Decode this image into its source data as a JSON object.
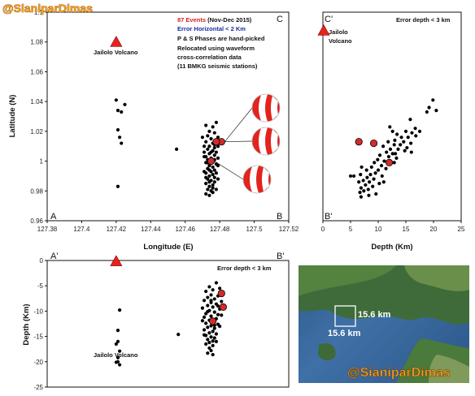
{
  "watermark": "@SianiparDimas",
  "charts": {
    "a": {
      "corner_left": "A",
      "corner_right": "B",
      "corner_top": "C",
      "xlabel": "Longitude (E)",
      "ylabel": "Latitude (N)",
      "xticks": [
        "127.38",
        "127.4",
        "127.42",
        "127.44",
        "127.46",
        "127.48",
        "127.5",
        "127.52"
      ],
      "yticks": [
        "0.96",
        "0.98",
        "1",
        "1.02",
        "1.04",
        "1.06",
        "1.08",
        "1.1"
      ],
      "volcano_label": "Jailolo Volcano",
      "notes": {
        "events": "87 Events",
        "period": " (Nov-Dec 2015)",
        "error": "Error Horizontal <  2 Km",
        "l1": "P & S Phases are hand-picked",
        "l2": "Relocated using waveform",
        "l3": "cross-correlation data",
        "l4": "(11 BMKG seismic stations)"
      }
    },
    "c": {
      "corner_top": "C'",
      "corner_bottom": "B'",
      "xlabel": "Depth (Km)",
      "xticks": [
        "0",
        "5",
        "10",
        "15",
        "20",
        "25"
      ],
      "note": "Error depth < 3 km",
      "volcano_label_1": "Jailolo",
      "volcano_label_2": "Volcano"
    },
    "b": {
      "corner_left": "A'",
      "corner_right": "B'",
      "ylabel": "Depth (Km)",
      "yticks": [
        "0",
        "-5",
        "-10",
        "-15",
        "-20",
        "-25"
      ],
      "note": "Error depth < 3 km",
      "volcano_label": "Jailolo Volcano"
    }
  },
  "map": {
    "label_horizontal": "15.6 km",
    "label_vertical": "15.6 km"
  },
  "chart_data": [
    {
      "type": "scatter",
      "xlabel": "Longitude (E)",
      "ylabel": "Latitude (N)",
      "xlim": [
        127.38,
        127.52
      ],
      "ylim": [
        0.96,
        1.1
      ],
      "volcano": {
        "x": 127.42,
        "y": 1.08,
        "color": "#e8221b"
      },
      "highlight_color": "#d32b2b",
      "highlighted_events": [
        {
          "x": 127.481,
          "y": 1.013
        },
        {
          "x": 127.478,
          "y": 1.013
        },
        {
          "x": 127.475,
          "y": 1.0
        }
      ],
      "events": [
        [
          127.42,
          1.041
        ],
        [
          127.421,
          1.034
        ],
        [
          127.423,
          1.033
        ],
        [
          127.425,
          1.038
        ],
        [
          127.421,
          1.021
        ],
        [
          127.422,
          1.016
        ],
        [
          127.423,
          1.012
        ],
        [
          127.421,
          0.983
        ],
        [
          127.455,
          1.008
        ],
        [
          127.472,
          1.024
        ],
        [
          127.476,
          1.023
        ],
        [
          127.478,
          1.026
        ],
        [
          127.474,
          1.02
        ],
        [
          127.477,
          1.019
        ],
        [
          127.473,
          1.017
        ],
        [
          127.47,
          1.016
        ],
        [
          127.475,
          1.015
        ],
        [
          127.479,
          1.016
        ],
        [
          127.472,
          1.013
        ],
        [
          127.476,
          1.012
        ],
        [
          127.474,
          1.01
        ],
        [
          127.477,
          1.009
        ],
        [
          127.473,
          1.008
        ],
        [
          127.476,
          1.007
        ],
        [
          127.471,
          1.006
        ],
        [
          127.478,
          1.006
        ],
        [
          127.474,
          1.005
        ],
        [
          127.477,
          1.004
        ],
        [
          127.472,
          1.003
        ],
        [
          127.475,
          1.002
        ],
        [
          127.479,
          1.002
        ],
        [
          127.473,
          1.001
        ],
        [
          127.476,
          1.0
        ],
        [
          127.472,
          0.999
        ],
        [
          127.478,
          0.998
        ],
        [
          127.474,
          0.997
        ],
        [
          127.476,
          0.996
        ],
        [
          127.473,
          0.995
        ],
        [
          127.477,
          0.994
        ],
        [
          127.475,
          0.993
        ],
        [
          127.472,
          0.992
        ],
        [
          127.476,
          0.991
        ],
        [
          127.474,
          0.99
        ],
        [
          127.477,
          0.989
        ],
        [
          127.473,
          0.988
        ],
        [
          127.475,
          0.987
        ],
        [
          127.477,
          0.986
        ],
        [
          127.472,
          0.985
        ],
        [
          127.476,
          0.984
        ],
        [
          127.474,
          0.983
        ],
        [
          127.473,
          0.981
        ],
        [
          127.475,
          0.98
        ],
        [
          127.476,
          0.979
        ],
        [
          127.472,
          0.978
        ],
        [
          127.474,
          0.977
        ],
        [
          127.477,
          1.011
        ],
        [
          127.471,
          1.01
        ],
        [
          127.479,
          1.01
        ],
        [
          127.475,
          1.006
        ],
        [
          127.471,
          1.003
        ],
        [
          127.477,
          1.001
        ],
        [
          127.473,
          0.999
        ],
        [
          127.479,
          0.997
        ],
        [
          127.474,
          0.994
        ],
        [
          127.471,
          0.993
        ],
        [
          127.478,
          0.992
        ],
        [
          127.472,
          0.989
        ],
        [
          127.479,
          0.988
        ],
        [
          127.474,
          0.986
        ],
        [
          127.476,
          0.982
        ],
        [
          127.478,
          0.981
        ]
      ]
    },
    {
      "type": "scatter",
      "xlabel": "Depth (Km)",
      "xlim": [
        0,
        25
      ],
      "ylim": [
        0.96,
        1.1
      ],
      "volcano": {
        "x": 0,
        "y": 1.08,
        "color": "#e8221b"
      },
      "highlighted_events": [
        {
          "x": 6.5,
          "y": 1.013
        },
        {
          "x": 9.2,
          "y": 1.012
        },
        {
          "x": 12.0,
          "y": 0.999
        }
      ],
      "events": [
        [
          19.9,
          1.041
        ],
        [
          19.2,
          1.036
        ],
        [
          18.8,
          1.033
        ],
        [
          20.5,
          1.034
        ],
        [
          15.8,
          1.028
        ],
        [
          16.7,
          1.022
        ],
        [
          17.5,
          1.02
        ],
        [
          16.1,
          1.019
        ],
        [
          15.0,
          1.02
        ],
        [
          12.1,
          1.023
        ],
        [
          12.6,
          1.02
        ],
        [
          13.4,
          1.018
        ],
        [
          14.2,
          1.016
        ],
        [
          15.4,
          1.016
        ],
        [
          13.0,
          1.014
        ],
        [
          14.6,
          1.013
        ],
        [
          11.8,
          1.013
        ],
        [
          12.9,
          1.011
        ],
        [
          14.0,
          1.011
        ],
        [
          15.9,
          1.012
        ],
        [
          10.9,
          1.01
        ],
        [
          12.2,
          1.008
        ],
        [
          13.6,
          1.008
        ],
        [
          11.5,
          1.006
        ],
        [
          12.6,
          1.005
        ],
        [
          14.8,
          1.007
        ],
        [
          10.3,
          1.004
        ],
        [
          11.9,
          1.003
        ],
        [
          13.3,
          1.002
        ],
        [
          9.9,
          1.001
        ],
        [
          11.1,
          1.0
        ],
        [
          12.9,
          0.999
        ],
        [
          9.3,
          0.999
        ],
        [
          10.6,
          0.997
        ],
        [
          8.8,
          0.996
        ],
        [
          10.0,
          0.994
        ],
        [
          11.4,
          0.995
        ],
        [
          7.9,
          0.994
        ],
        [
          9.5,
          0.992
        ],
        [
          8.6,
          0.991
        ],
        [
          10.7,
          0.99
        ],
        [
          6.8,
          0.991
        ],
        [
          8.0,
          0.989
        ],
        [
          9.2,
          0.988
        ],
        [
          7.3,
          0.987
        ],
        [
          8.4,
          0.986
        ],
        [
          6.5,
          0.986
        ],
        [
          7.7,
          0.984
        ],
        [
          9.0,
          0.983
        ],
        [
          6.9,
          0.982
        ],
        [
          8.2,
          0.981
        ],
        [
          7.4,
          0.98
        ],
        [
          6.7,
          0.979
        ],
        [
          9.6,
          0.978
        ],
        [
          8.3,
          0.977
        ],
        [
          6.9,
          0.976
        ],
        [
          5.6,
          0.99
        ],
        [
          5.0,
          0.99
        ],
        [
          16.8,
          1.017
        ],
        [
          15.2,
          1.009
        ],
        [
          16.0,
          1.006
        ],
        [
          11.0,
          0.986
        ],
        [
          13.1,
          1.005
        ],
        [
          10.2,
          0.985
        ],
        [
          7.0,
          0.996
        ]
      ]
    },
    {
      "type": "scatter",
      "ylabel": "Depth (Km)",
      "xlim": [
        127.38,
        127.52
      ],
      "ylim": [
        -25,
        0
      ],
      "volcano": {
        "x": 127.42,
        "y": 0,
        "color": "#e8221b"
      },
      "highlighted_events": [
        {
          "x": 127.481,
          "y": -6.5
        },
        {
          "x": 127.482,
          "y": -9.2
        },
        {
          "x": 127.476,
          "y": -12.0
        }
      ],
      "events": [
        [
          127.422,
          -9.8
        ],
        [
          127.421,
          -13.8
        ],
        [
          127.421,
          -16.0
        ],
        [
          127.42,
          -16.5
        ],
        [
          127.422,
          -17.9
        ],
        [
          127.421,
          -19.2
        ],
        [
          127.42,
          -20.1
        ],
        [
          127.422,
          -20.6
        ],
        [
          127.421,
          -20.0
        ],
        [
          127.456,
          -14.6
        ],
        [
          127.478,
          -4.4
        ],
        [
          127.474,
          -5.2
        ],
        [
          127.48,
          -5.5
        ],
        [
          127.476,
          -5.8
        ],
        [
          127.472,
          -6.1
        ],
        [
          127.482,
          -6.3
        ],
        [
          127.475,
          -6.8
        ],
        [
          127.479,
          -7.0
        ],
        [
          127.473,
          -7.3
        ],
        [
          127.477,
          -7.6
        ],
        [
          127.471,
          -7.9
        ],
        [
          127.481,
          -8.1
        ],
        [
          127.475,
          -8.3
        ],
        [
          127.478,
          -8.6
        ],
        [
          127.473,
          -8.9
        ],
        [
          127.476,
          -9.2
        ],
        [
          127.47,
          -9.4
        ],
        [
          127.48,
          -9.6
        ],
        [
          127.474,
          -9.9
        ],
        [
          127.477,
          -10.2
        ],
        [
          127.472,
          -10.5
        ],
        [
          127.479,
          -10.7
        ],
        [
          127.475,
          -11.0
        ],
        [
          127.471,
          -11.2
        ],
        [
          127.478,
          -11.5
        ],
        [
          127.474,
          -11.8
        ],
        [
          127.476,
          -12.1
        ],
        [
          127.472,
          -12.4
        ],
        [
          127.479,
          -12.6
        ],
        [
          127.475,
          -12.9
        ],
        [
          127.473,
          -13.2
        ],
        [
          127.477,
          -13.4
        ],
        [
          127.471,
          -13.7
        ],
        [
          127.476,
          -14.0
        ],
        [
          127.474,
          -14.3
        ],
        [
          127.478,
          -14.5
        ],
        [
          127.472,
          -14.8
        ],
        [
          127.475,
          -15.1
        ],
        [
          127.477,
          -15.3
        ],
        [
          127.473,
          -15.6
        ],
        [
          127.476,
          -15.9
        ],
        [
          127.474,
          -16.2
        ],
        [
          127.472,
          -16.5
        ],
        [
          127.476,
          -16.8
        ],
        [
          127.474,
          -17.3
        ],
        [
          127.475,
          -17.8
        ],
        [
          127.473,
          -18.3
        ],
        [
          127.476,
          -18.6
        ],
        [
          127.479,
          -9.0
        ],
        [
          127.481,
          -10.8
        ],
        [
          127.47,
          -11.9
        ],
        [
          127.48,
          -13.0
        ],
        [
          127.471,
          -14.7
        ],
        [
          127.478,
          -16.0
        ],
        [
          127.477,
          -12.8
        ],
        [
          127.473,
          -10.1
        ],
        [
          127.475,
          -7.9
        ]
      ]
    }
  ]
}
